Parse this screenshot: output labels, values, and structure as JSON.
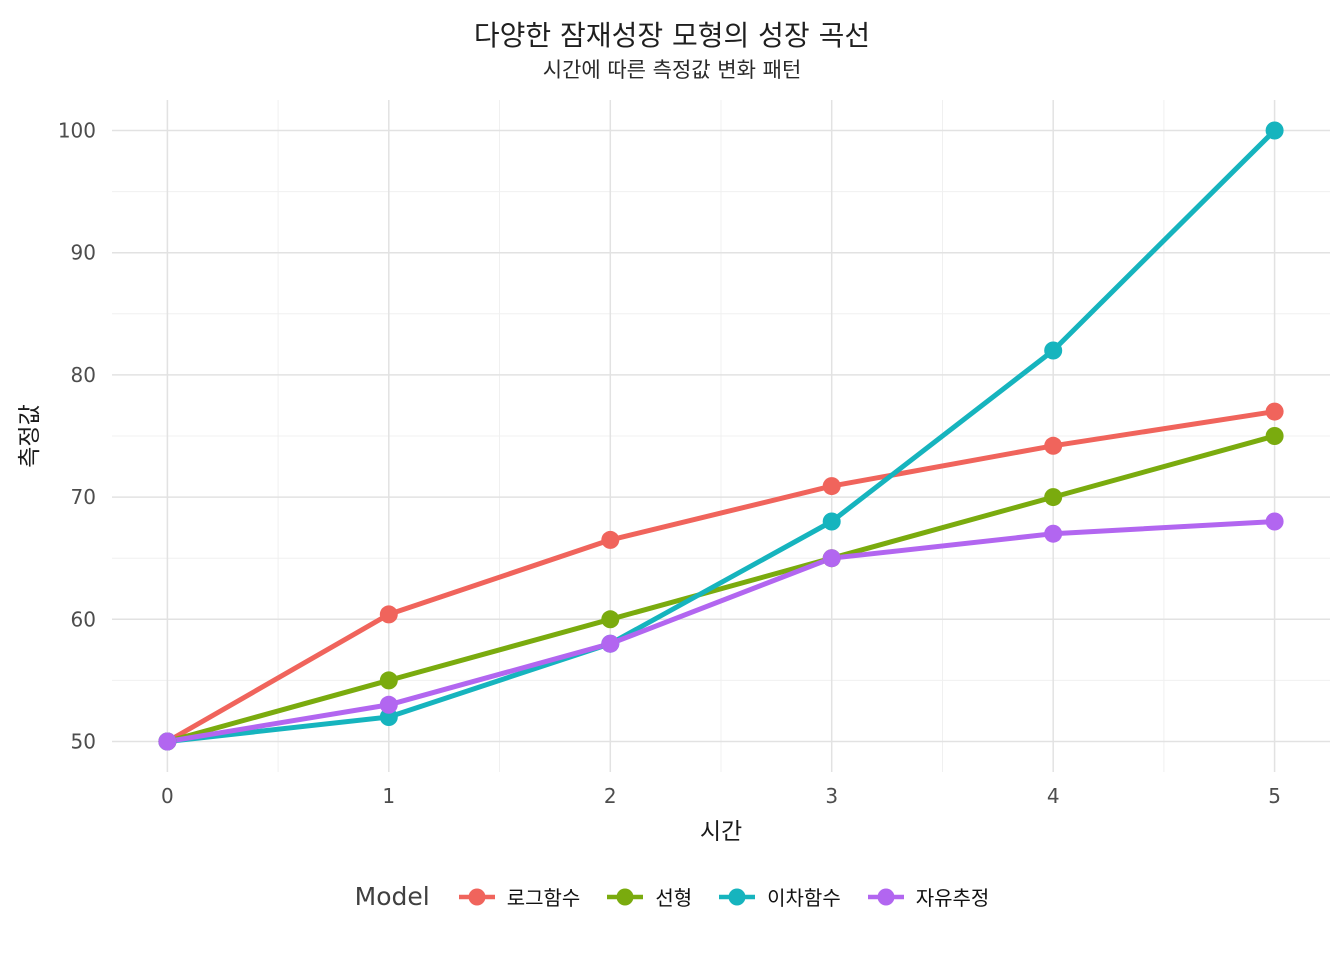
{
  "title": "다양한 잠재성장 모형의 성장 곡선",
  "subtitle": "시간에 따른 측정값 변화 패턴",
  "chart_data": {
    "type": "line",
    "x": [
      0,
      1,
      2,
      3,
      4,
      5
    ],
    "series": [
      {
        "name": "로그함수",
        "color": "#F0645C",
        "values": [
          50,
          60.4,
          66.5,
          70.9,
          74.2,
          77
        ]
      },
      {
        "name": "선형",
        "color": "#7AAB0E",
        "values": [
          50,
          55,
          60,
          65,
          70,
          75
        ]
      },
      {
        "name": "이차함수",
        "color": "#16B4BE",
        "values": [
          50,
          52,
          58,
          68,
          82,
          100
        ]
      },
      {
        "name": "자유추정",
        "color": "#B266F0",
        "values": [
          50,
          53,
          58,
          65,
          67,
          68
        ]
      }
    ],
    "xlabel": "시간",
    "ylabel": "측정값",
    "xticks": [
      0,
      1,
      2,
      3,
      4,
      5
    ],
    "yticks": [
      50,
      60,
      70,
      80,
      90,
      100
    ],
    "xlim": [
      -0.25,
      5.25
    ],
    "ylim": [
      47.5,
      102.5
    ],
    "grid": true,
    "legend": {
      "title": "Model",
      "position": "bottom"
    },
    "grid_major_color": "#E2E2E2",
    "grid_minor_color": "#F0F0F0"
  }
}
